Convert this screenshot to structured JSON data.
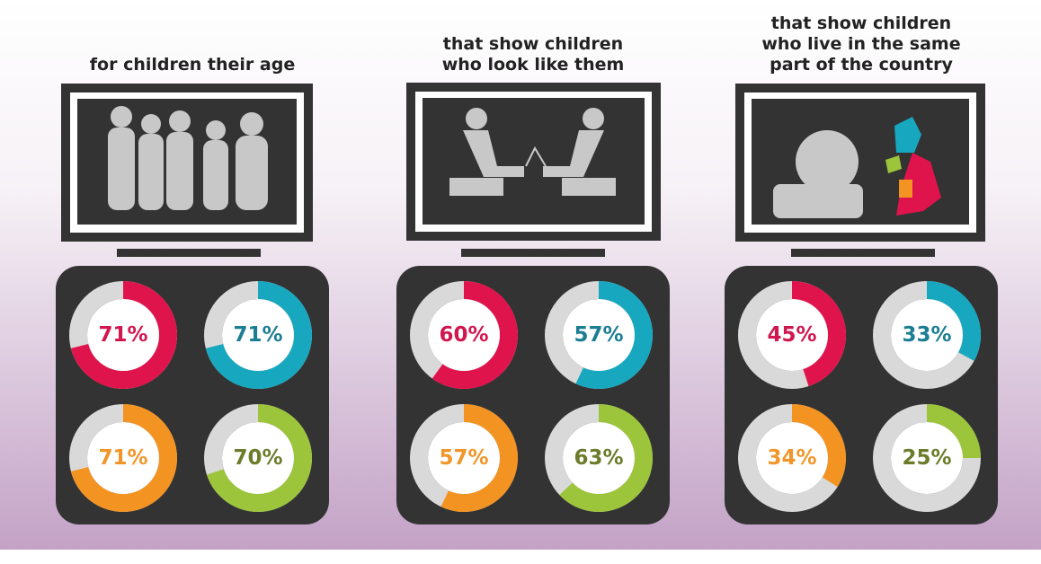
{
  "chart_data": [
    {
      "type": "donut",
      "title": "for children their age",
      "values": [
        71,
        71,
        71,
        70
      ],
      "value_labels": [
        "71%",
        "71%",
        "71%",
        "70%"
      ],
      "colors": [
        "#e0144c",
        "#17a8c0",
        "#f39322",
        "#9cc53c"
      ]
    },
    {
      "type": "donut",
      "title": "that show children\nwho look like them",
      "values": [
        60,
        57,
        57,
        63
      ],
      "value_labels": [
        "60%",
        "57%",
        "57%",
        "63%"
      ],
      "colors": [
        "#e0144c",
        "#17a8c0",
        "#f39322",
        "#9cc53c"
      ]
    },
    {
      "type": "donut",
      "title": "that show children\nwho live in the same\npart of the country",
      "values": [
        45,
        33,
        34,
        25
      ],
      "value_labels": [
        "45%",
        "33%",
        "34%",
        "25%"
      ],
      "colors": [
        "#e0144c",
        "#17a8c0",
        "#f39322",
        "#9cc53c"
      ]
    }
  ]
}
